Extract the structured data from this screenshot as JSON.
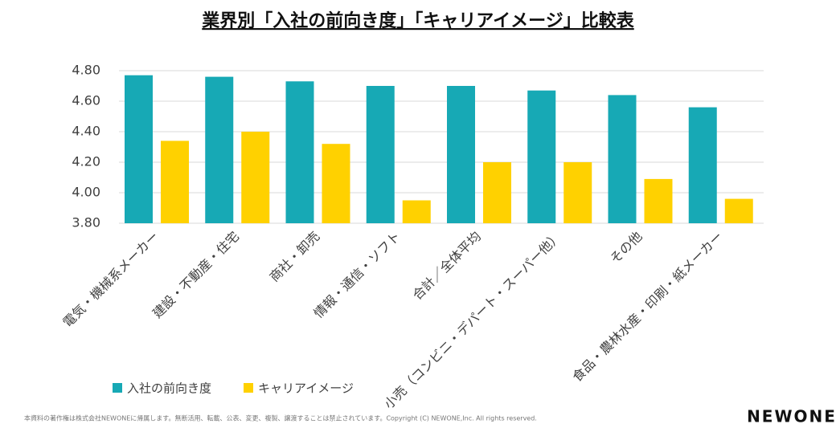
{
  "chart_data": {
    "type": "bar",
    "title": "業界別「入社の前向き度」「キャリアイメージ」比較表",
    "categories": [
      "電気・機械系メーカー",
      "建設・不動産・住宅",
      "商社・卸売",
      "情報・通信・ソフト",
      "合計／全体平均",
      "小売（コンビニ・デパート・スーパー他）",
      "その他",
      "食品・農林水産・印刷・紙メーカー"
    ],
    "series": [
      {
        "name": "入社の前向き度",
        "color": "#17a9b5",
        "values": [
          4.77,
          4.76,
          4.73,
          4.7,
          4.7,
          4.67,
          4.64,
          4.56
        ]
      },
      {
        "name": "キャリアイメージ",
        "color": "#ffd100",
        "values": [
          4.34,
          4.4,
          4.32,
          3.95,
          4.2,
          4.2,
          4.09,
          3.96
        ]
      }
    ],
    "ylim": [
      3.8,
      4.8
    ],
    "yticks": [
      {
        "value": 3.8,
        "label": "3.80"
      },
      {
        "value": 4.0,
        "label": "4.00"
      },
      {
        "value": 4.2,
        "label": "4.20"
      },
      {
        "value": 4.4,
        "label": "4.40"
      },
      {
        "value": 4.6,
        "label": "4.60"
      },
      {
        "value": 4.8,
        "label": "4.80"
      }
    ],
    "grid": true
  },
  "footer": {
    "copyright": "本資料の著作権は株式会社NEWONEに帰属します。無断活用、転載、公表、変更、複製、譲渡することは禁止されています。Copyright (C) NEWONE,Inc.  All rights reserved.",
    "logo": "NEWONE"
  }
}
